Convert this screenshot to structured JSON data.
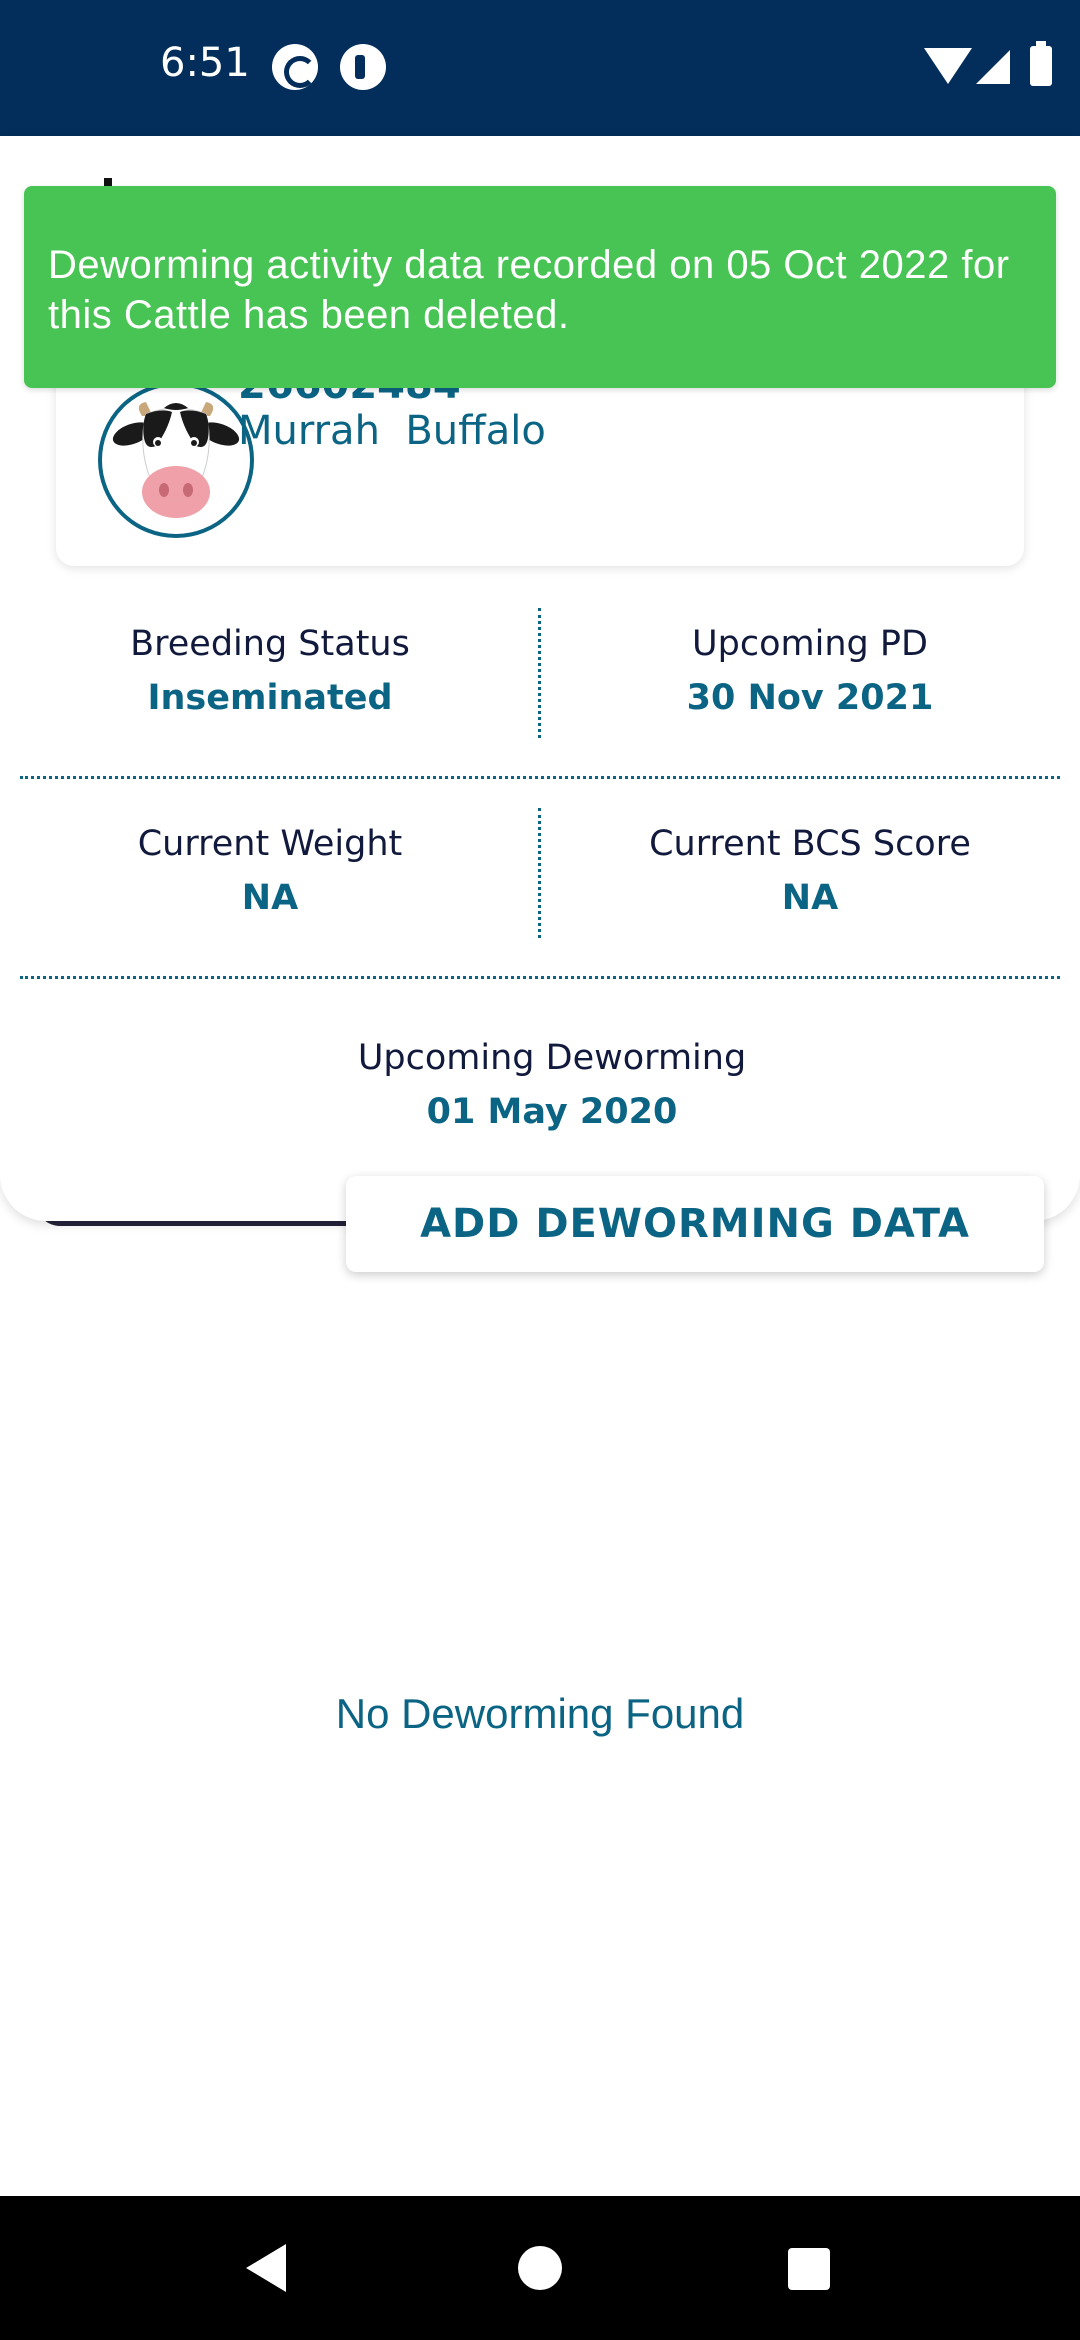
{
  "status_bar": {
    "time": "6:51",
    "icons": [
      "sync-app-icon",
      "app-notification-icon",
      "wifi-icon",
      "signal-icon",
      "battery-icon"
    ]
  },
  "snackbar": {
    "message": "Deworming activity data recorded on 05 Oct 2022 for this Cattle has been deleted.",
    "color": "#47c453"
  },
  "animal": {
    "id": "26602484",
    "breed": "Murrah  Buffalo",
    "avatar_icon": "cow-face-icon"
  },
  "stats": {
    "breeding_status": {
      "label": "Breeding Status",
      "value": "Inseminated"
    },
    "upcoming_pd": {
      "label": "Upcoming PD",
      "value": "30 Nov 2021"
    },
    "current_weight": {
      "label": "Current Weight",
      "value": "NA"
    },
    "current_bcs": {
      "label": "Current BCS Score",
      "value": "NA"
    },
    "upcoming_deworming": {
      "label": "Upcoming Deworming",
      "value": "01 May 2020"
    }
  },
  "actions": {
    "add_deworming": "ADD DEWORMING DATA"
  },
  "empty_state": {
    "message": "No Deworming Found"
  },
  "colors": {
    "status_bar": "#032d5a",
    "accent": "#0b6484",
    "label": "#111a3c",
    "success": "#47c453"
  },
  "nav_bar": {
    "icons": [
      "back-icon",
      "home-icon",
      "recents-icon"
    ]
  }
}
